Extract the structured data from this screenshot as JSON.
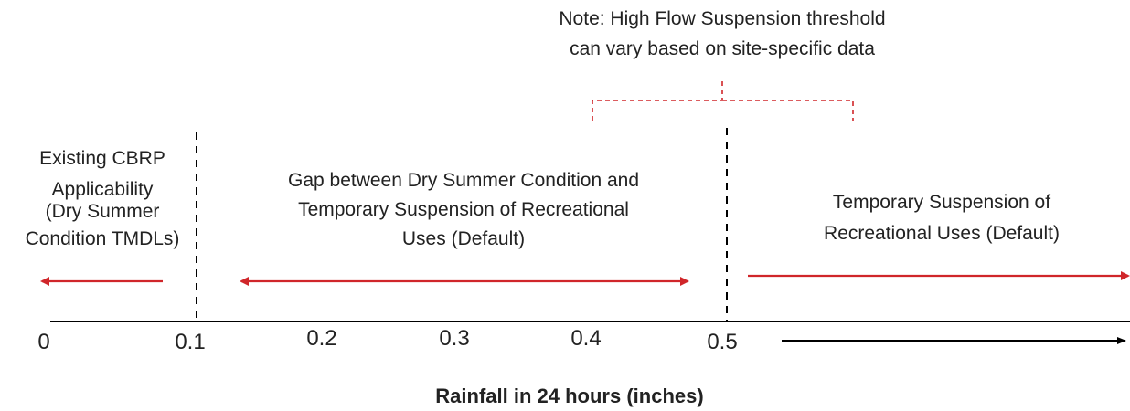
{
  "note": [
    "Note: High Flow Suspension threshold",
    "can vary based on site-specific data"
  ],
  "regions": [
    {
      "label": [
        "Existing CBRP",
        "Applicability",
        "(Dry Summer",
        "Condition TMDLs)"
      ]
    },
    {
      "label": [
        "Gap between Dry Summer Condition and",
        "Temporary Suspension of Recreational",
        "Uses (Default)"
      ]
    },
    {
      "label": [
        "Temporary Suspension of",
        "Recreational Uses (Default)"
      ]
    }
  ],
  "axis": {
    "ticks": [
      "0",
      "0.1",
      "0.2",
      "0.3",
      "0.4",
      "0.5"
    ],
    "title": "Rainfall in 24 hours (inches)"
  }
}
